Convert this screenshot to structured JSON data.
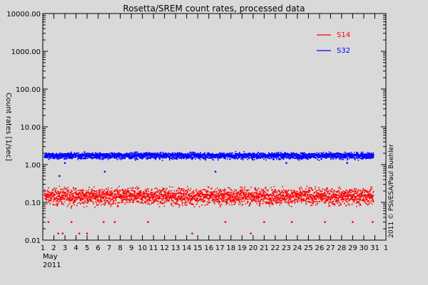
{
  "chart_data": {
    "type": "scatter",
    "title": "Rosetta/SREM count rates, processed data",
    "ylabel": "Count rates [1/sec]",
    "yscale": "log",
    "ylim": [
      0.01,
      10000
    ],
    "yticks": [
      "10000.00",
      "1000.00",
      "100.00",
      "10.00",
      "1.00",
      "0.10",
      "0.01"
    ],
    "xlim": [
      1,
      32
    ],
    "xticks": [
      "1",
      "2",
      "3",
      "4",
      "5",
      "6",
      "7",
      "8",
      "9",
      "10",
      "11",
      "12",
      "13",
      "14",
      "15",
      "16",
      "17",
      "18",
      "19",
      "20",
      "21",
      "22",
      "23",
      "24",
      "25",
      "26",
      "27",
      "28",
      "29",
      "30",
      "31",
      "1"
    ],
    "x_month": "May",
    "x_year": "2011",
    "copyright": "2011 © PSI/ESA/Paul Buehler",
    "legend_position": "top-right",
    "series": [
      {
        "name": "S14",
        "color": "#ff0000",
        "band": [
          0.07,
          0.3
        ],
        "typical": 0.15,
        "low_outliers": [
          [
            1.5,
            0.03
          ],
          [
            2.4,
            0.015
          ],
          [
            2.8,
            0.015
          ],
          [
            3.6,
            0.03
          ],
          [
            4.3,
            0.015
          ],
          [
            5.0,
            0.015
          ],
          [
            6.5,
            0.03
          ],
          [
            7.5,
            0.03
          ],
          [
            10.5,
            0.03
          ],
          [
            14.5,
            0.015
          ],
          [
            17.5,
            0.03
          ],
          [
            19.8,
            0.015
          ],
          [
            21.0,
            0.03
          ],
          [
            23.5,
            0.03
          ],
          [
            26.5,
            0.03
          ],
          [
            29.0,
            0.03
          ],
          [
            30.8,
            0.03
          ]
        ]
      },
      {
        "name": "S32",
        "color": "#0000ff",
        "band": [
          1.3,
          2.3
        ],
        "typical": 1.8,
        "low_outliers": [
          [
            2.5,
            0.5
          ],
          [
            6.6,
            0.65
          ],
          [
            16.6,
            0.65
          ],
          [
            3.0,
            1.1
          ],
          [
            23.0,
            1.1
          ],
          [
            28.5,
            1.1
          ]
        ]
      }
    ]
  }
}
